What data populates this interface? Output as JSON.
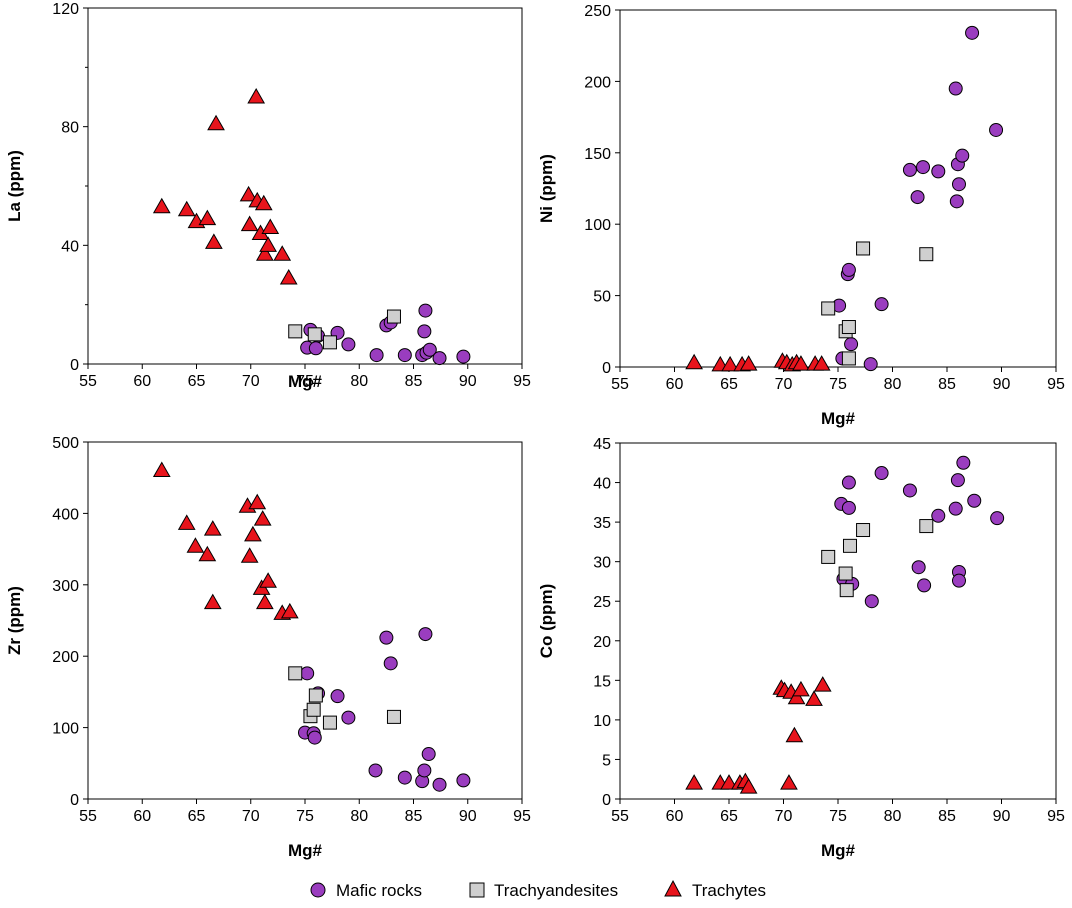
{
  "colors": {
    "mafic": "#9a3dbf",
    "trachyandesite": "#cfcfcf",
    "trachyte": "#e8141c",
    "outline": "#000000"
  },
  "legend": {
    "mafic": "Mafic rocks",
    "trachyandesite": "Trachyandesites",
    "trachyte": "Trachytes"
  },
  "chart_data": [
    {
      "type": "scatter",
      "id": "la",
      "xlabel": "Mg#",
      "ylabel": "La (ppm)",
      "xlim": [
        55,
        95
      ],
      "ylim": [
        0,
        120
      ],
      "xticks": [
        55,
        60,
        65,
        70,
        75,
        80,
        85,
        90,
        95
      ],
      "yticks": [
        0,
        40,
        80,
        120
      ],
      "yminor": [
        20,
        60,
        100
      ],
      "series": [
        {
          "name": "Mafic rocks",
          "key": "mafic",
          "marker": "circle",
          "points": [
            [
              75.5,
              11.5
            ],
            [
              76.2,
              9.5
            ],
            [
              75.2,
              5.5
            ],
            [
              76,
              5.3
            ],
            [
              78,
              10.5
            ],
            [
              79,
              6.6
            ],
            [
              81.6,
              3
            ],
            [
              82.5,
              13
            ],
            [
              82.9,
              14
            ],
            [
              84.2,
              3
            ],
            [
              85.8,
              3
            ],
            [
              86.2,
              3.8
            ],
            [
              86.5,
              4.8
            ],
            [
              86,
              11
            ],
            [
              86.1,
              18
            ],
            [
              87.4,
              2
            ],
            [
              89.6,
              2.5
            ]
          ]
        },
        {
          "name": "Trachyandesites",
          "key": "trachyandesite",
          "marker": "square",
          "points": [
            [
              74.1,
              11
            ],
            [
              75.9,
              10
            ],
            [
              77.3,
              7.3
            ],
            [
              83.2,
              16
            ]
          ]
        },
        {
          "name": "Trachytes",
          "key": "trachyte",
          "marker": "triangle",
          "points": [
            [
              61.8,
              53
            ],
            [
              64.1,
              52
            ],
            [
              65,
              48
            ],
            [
              66,
              49
            ],
            [
              66.6,
              41
            ],
            [
              66.8,
              81
            ],
            [
              69.8,
              57
            ],
            [
              69.9,
              47
            ],
            [
              70.5,
              90
            ],
            [
              70.6,
              55
            ],
            [
              71.2,
              54
            ],
            [
              70.9,
              44
            ],
            [
              71.3,
              37
            ],
            [
              71.6,
              40
            ],
            [
              71.8,
              46
            ],
            [
              72.9,
              37
            ],
            [
              73.5,
              29
            ]
          ]
        }
      ]
    },
    {
      "type": "scatter",
      "id": "ni",
      "xlabel": "Mg#",
      "ylabel": "Ni (ppm)",
      "xlim": [
        55,
        95
      ],
      "ylim": [
        0,
        250
      ],
      "xticks": [
        55,
        60,
        65,
        70,
        75,
        80,
        85,
        90,
        95
      ],
      "yticks": [
        0,
        50,
        100,
        150,
        200,
        250
      ],
      "yminor": [],
      "series": [
        {
          "name": "Mafic rocks",
          "key": "mafic",
          "marker": "circle",
          "points": [
            [
              75.1,
              43
            ],
            [
              75.4,
              6
            ],
            [
              75.9,
              65
            ],
            [
              76,
              68
            ],
            [
              76.2,
              16
            ],
            [
              78,
              2
            ],
            [
              79,
              44
            ],
            [
              81.6,
              138
            ],
            [
              82.3,
              119
            ],
            [
              82.8,
              140
            ],
            [
              84.2,
              137
            ],
            [
              85.8,
              195
            ],
            [
              85.9,
              116
            ],
            [
              86,
              142
            ],
            [
              86.1,
              128
            ],
            [
              86.4,
              148
            ],
            [
              87.3,
              234
            ],
            [
              89.5,
              166
            ]
          ]
        },
        {
          "name": "Trachyandesites",
          "key": "trachyandesite",
          "marker": "square",
          "points": [
            [
              74.1,
              41
            ],
            [
              75.7,
              25
            ],
            [
              76,
              28
            ],
            [
              77.3,
              83
            ],
            [
              83.1,
              79
            ],
            [
              76,
              6
            ]
          ]
        },
        {
          "name": "Trachytes",
          "key": "trachyte",
          "marker": "triangle",
          "points": [
            [
              61.8,
              3
            ],
            [
              64.2,
              1.5
            ],
            [
              65.1,
              1.5
            ],
            [
              66.2,
              1.5
            ],
            [
              66.8,
              2
            ],
            [
              69.9,
              4
            ],
            [
              70.3,
              3
            ],
            [
              70.8,
              1.5
            ],
            [
              71.2,
              3
            ],
            [
              71.6,
              2
            ],
            [
              72.9,
              2
            ],
            [
              73.5,
              2
            ]
          ]
        }
      ]
    },
    {
      "type": "scatter",
      "id": "zr",
      "xlabel": "Mg#",
      "ylabel": "Zr (ppm)",
      "xlim": [
        55,
        95
      ],
      "ylim": [
        0,
        500
      ],
      "xticks": [
        55,
        60,
        65,
        70,
        75,
        80,
        85,
        90,
        95
      ],
      "yticks": [
        0,
        100,
        200,
        300,
        400,
        500
      ],
      "yminor": [],
      "series": [
        {
          "name": "Mafic rocks",
          "key": "mafic",
          "marker": "circle",
          "points": [
            [
              75.2,
              176
            ],
            [
              75,
              93
            ],
            [
              75.8,
              92
            ],
            [
              75.9,
              86
            ],
            [
              76.2,
              148
            ],
            [
              78,
              144
            ],
            [
              79,
              114
            ],
            [
              81.5,
              40
            ],
            [
              82.5,
              226
            ],
            [
              82.9,
              190
            ],
            [
              84.2,
              30
            ],
            [
              85.8,
              25
            ],
            [
              86,
              40
            ],
            [
              86.1,
              231
            ],
            [
              86.4,
              63
            ],
            [
              87.4,
              20
            ],
            [
              89.6,
              26
            ]
          ]
        },
        {
          "name": "Trachyandesites",
          "key": "trachyandesite",
          "marker": "square",
          "points": [
            [
              74.1,
              176
            ],
            [
              75.5,
              116
            ],
            [
              75.8,
              125
            ],
            [
              76,
              145
            ],
            [
              77.3,
              107
            ],
            [
              83.2,
              115
            ]
          ]
        },
        {
          "name": "Trachytes",
          "key": "trachyte",
          "marker": "triangle",
          "points": [
            [
              61.8,
              460
            ],
            [
              64.1,
              386
            ],
            [
              64.9,
              354
            ],
            [
              66,
              342
            ],
            [
              66.5,
              378
            ],
            [
              66.5,
              275
            ],
            [
              69.7,
              410
            ],
            [
              69.9,
              340
            ],
            [
              70.2,
              370
            ],
            [
              70.6,
              415
            ],
            [
              71.1,
              392
            ],
            [
              71,
              295
            ],
            [
              71.3,
              275
            ],
            [
              71.6,
              305
            ],
            [
              72.9,
              260
            ],
            [
              73.6,
              262
            ]
          ]
        }
      ]
    },
    {
      "type": "scatter",
      "id": "co",
      "xlabel": "Mg#",
      "ylabel": "Co (ppm)",
      "xlim": [
        55,
        95
      ],
      "ylim": [
        0,
        45
      ],
      "xticks": [
        55,
        60,
        65,
        70,
        75,
        80,
        85,
        90,
        95
      ],
      "yticks": [
        0,
        5,
        10,
        15,
        20,
        25,
        30,
        35,
        40,
        45
      ],
      "yminor": [],
      "series": [
        {
          "name": "Mafic rocks",
          "key": "mafic",
          "marker": "circle",
          "points": [
            [
              75.3,
              37.3
            ],
            [
              75.5,
              27.8
            ],
            [
              76,
              40
            ],
            [
              76,
              36.8
            ],
            [
              76.3,
              27.2
            ],
            [
              78.1,
              25
            ],
            [
              79,
              41.2
            ],
            [
              81.6,
              39
            ],
            [
              82.4,
              29.3
            ],
            [
              82.9,
              27
            ],
            [
              84.2,
              35.8
            ],
            [
              85.8,
              36.7
            ],
            [
              86,
              40.3
            ],
            [
              86.1,
              28.7
            ],
            [
              86.1,
              27.6
            ],
            [
              86.5,
              42.5
            ],
            [
              87.5,
              37.7
            ],
            [
              89.6,
              35.5
            ]
          ]
        },
        {
          "name": "Trachyandesites",
          "key": "trachyandesite",
          "marker": "square",
          "points": [
            [
              74.1,
              30.6
            ],
            [
              75.7,
              28.5
            ],
            [
              75.8,
              26.4
            ],
            [
              76.1,
              32
            ],
            [
              77.3,
              34
            ],
            [
              83.1,
              34.5
            ]
          ]
        },
        {
          "name": "Trachytes",
          "key": "trachyte",
          "marker": "triangle",
          "points": [
            [
              61.8,
              2
            ],
            [
              64.2,
              2
            ],
            [
              65,
              2
            ],
            [
              66,
              2
            ],
            [
              66.5,
              2.2
            ],
            [
              66.8,
              1.5
            ],
            [
              69.8,
              14
            ],
            [
              70.1,
              13.7
            ],
            [
              70.5,
              2
            ],
            [
              70.7,
              13.5
            ],
            [
              71,
              8
            ],
            [
              71.2,
              12.8
            ],
            [
              71.6,
              13.8
            ],
            [
              72.8,
              12.6
            ],
            [
              73.6,
              14.4
            ]
          ]
        }
      ]
    }
  ]
}
